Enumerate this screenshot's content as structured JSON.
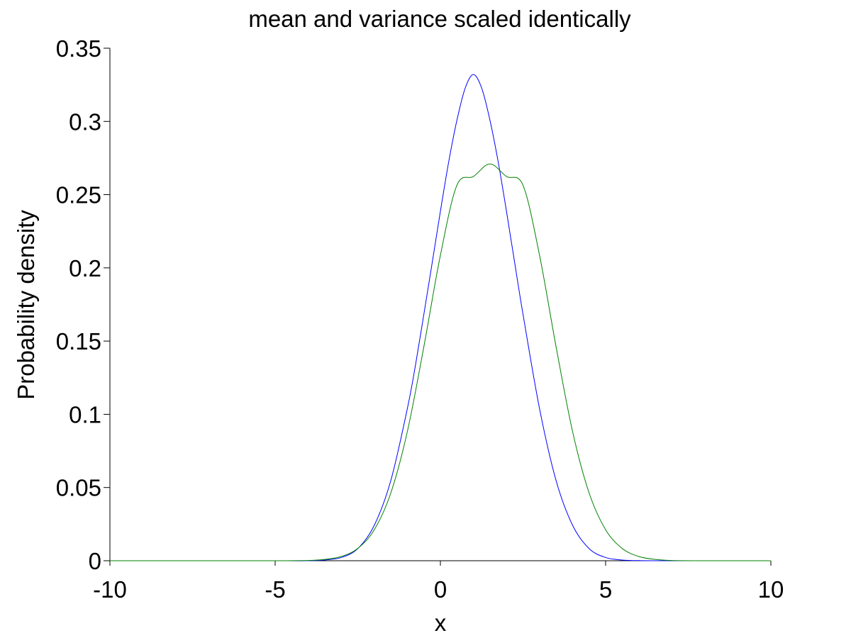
{
  "chart_data": {
    "type": "line",
    "title": "mean and variance scaled identically",
    "xlabel": "x",
    "ylabel": "Probability density",
    "xlim": [
      -10,
      10
    ],
    "ylim": [
      0,
      0.35
    ],
    "x_ticks": [
      -10,
      -5,
      0,
      5,
      10
    ],
    "x_tick_labels": [
      "-10",
      "-5",
      "0",
      "5",
      "10"
    ],
    "y_ticks": [
      0,
      0.05,
      0.1,
      0.15,
      0.2,
      0.25,
      0.3,
      0.35
    ],
    "y_tick_labels": [
      "0",
      "0.05",
      "0.1",
      "0.15",
      "0.2",
      "0.25",
      "0.3",
      "0.35"
    ],
    "grid": false,
    "legend": "none",
    "series": [
      {
        "color": "#0000ff",
        "x": [
          -10,
          -8,
          -6,
          -5,
          -4,
          -3.5,
          -3,
          -2.5,
          -2,
          -1.5,
          -1,
          -0.75,
          -0.5,
          -0.25,
          0,
          0.25,
          0.5,
          0.75,
          1,
          1.25,
          1.5,
          1.75,
          2,
          2.25,
          2.5,
          3,
          3.5,
          4,
          4.5,
          5,
          5.5,
          6,
          6.5,
          7,
          8,
          10
        ],
        "y": [
          0,
          0,
          0,
          0,
          0,
          0.0005,
          0.0022,
          0.0083,
          0.0242,
          0.0548,
          0.1039,
          0.1341,
          0.1683,
          0.2032,
          0.2386,
          0.2722,
          0.3008,
          0.3227,
          0.332,
          0.3227,
          0.3008,
          0.2722,
          0.2386,
          0.2032,
          0.1683,
          0.1039,
          0.0548,
          0.0242,
          0.0083,
          0.0022,
          0.0005,
          0.0001,
          0,
          0,
          0,
          0
        ]
      },
      {
        "color": "#008000",
        "x": [
          -10,
          -8,
          -6,
          -5,
          -4,
          -3.5,
          -3,
          -2.5,
          -2,
          -1.5,
          -1,
          -0.5,
          0,
          0.5,
          1,
          1.5,
          2,
          2.5,
          3,
          3.5,
          4,
          4.5,
          5,
          5.5,
          6,
          6.5,
          7,
          8,
          10
        ],
        "y": [
          0,
          0,
          0,
          0,
          0.0002,
          0.0009,
          0.0029,
          0.0084,
          0.0212,
          0.0463,
          0.0882,
          0.1462,
          0.2086,
          0.2564,
          0.2624,
          0.271,
          0.2624,
          0.2564,
          0.2086,
          0.1462,
          0.0882,
          0.0463,
          0.0212,
          0.0084,
          0.0029,
          0.0009,
          0.0002,
          0,
          0
        ]
      }
    ]
  }
}
